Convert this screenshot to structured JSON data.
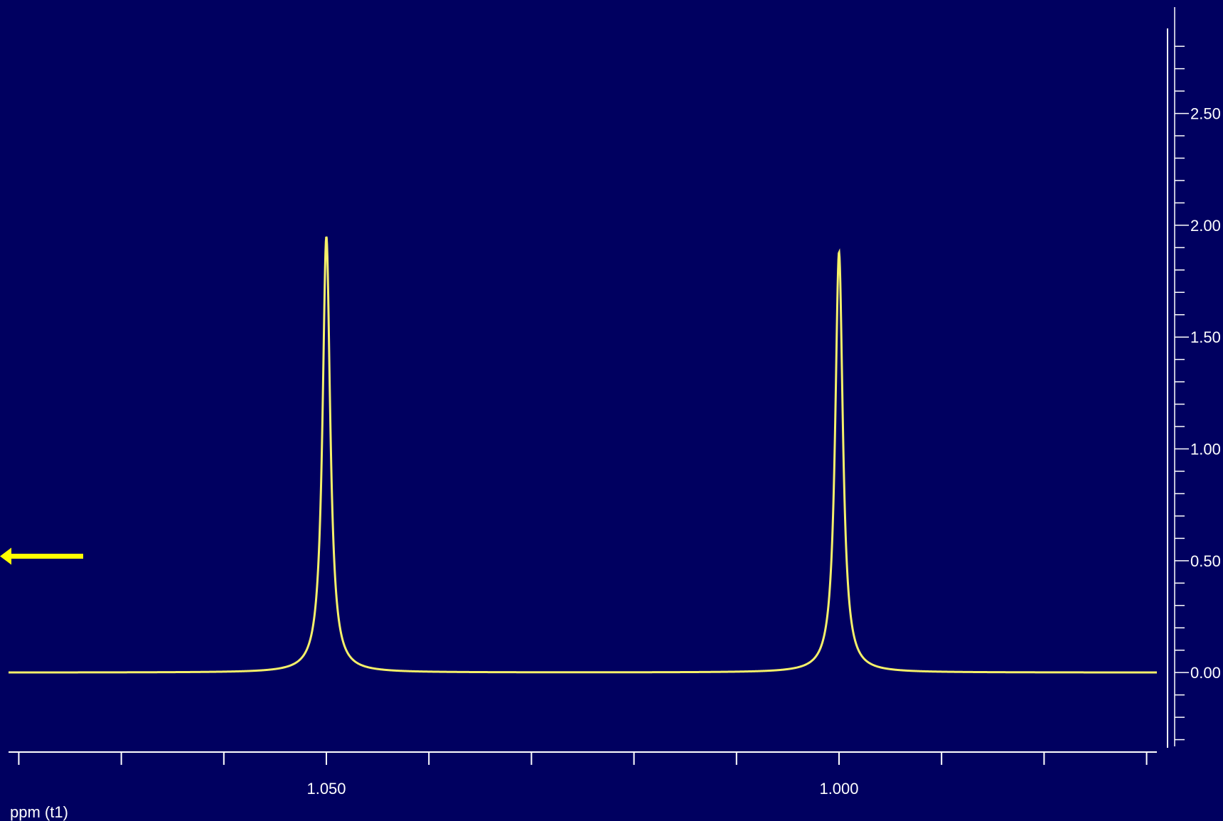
{
  "chart_data": {
    "type": "line",
    "xlabel": "ppm (t1)",
    "ylabel": "",
    "x_reversed": true,
    "xlim": [
      1.081,
      0.969
    ],
    "ylim": [
      -0.33,
      2.88
    ],
    "x_ticks": [
      1.05,
      1.0
    ],
    "x_tick_labels": [
      "1.050",
      "1.000"
    ],
    "x_minor_step": 0.01,
    "y_ticks": [
      0.0,
      0.5,
      1.0,
      1.5,
      2.0,
      2.5
    ],
    "y_tick_labels": [
      "0.00",
      "0.50",
      "1.00",
      "1.50",
      "2.00",
      "2.50"
    ],
    "y_minor_step": 0.1,
    "grid": false,
    "peaks": [
      {
        "center": 1.05,
        "height": 1.95,
        "half_width": 0.00045
      },
      {
        "center": 1.0,
        "height": 1.88,
        "half_width": 0.00045
      }
    ],
    "series_color": "#f5f06a",
    "axis_color": "#ffffff",
    "background": "#000060",
    "annotation": {
      "type": "arrow",
      "direction": "left",
      "y": 0.52,
      "color": "#ffff00"
    }
  }
}
